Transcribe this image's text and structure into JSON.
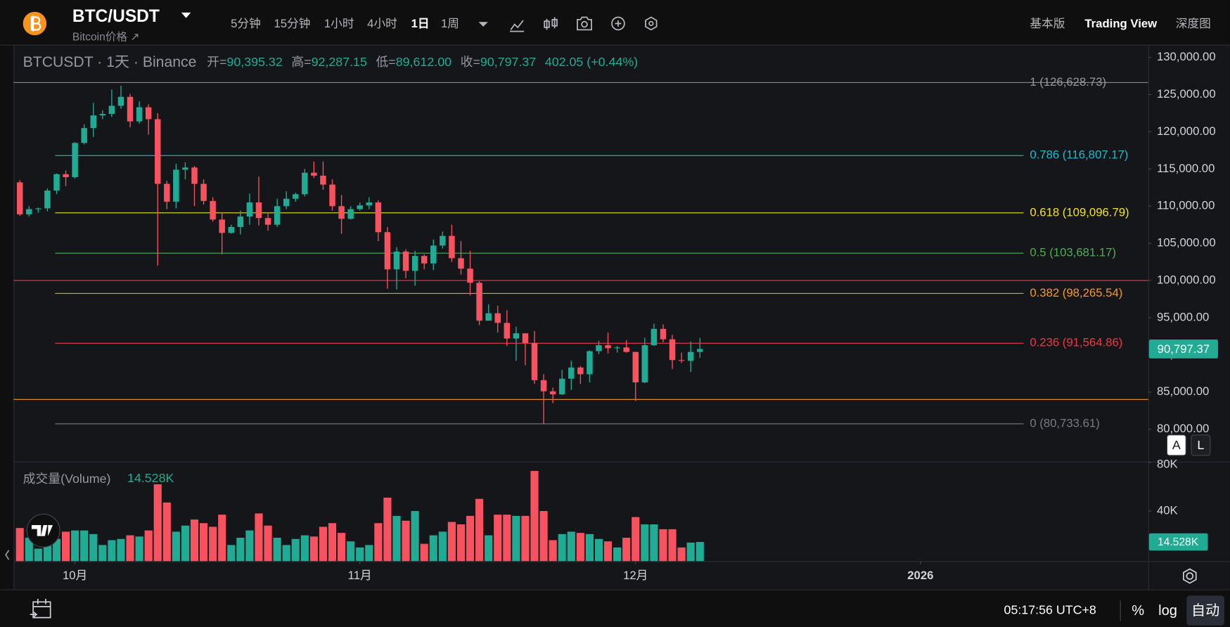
{
  "header": {
    "symbol": "BTC/USDT",
    "subtitle": "Bitcoin价格 ↗",
    "intervals": [
      "5分钟",
      "15分钟",
      "1小时",
      "4小时",
      "1日",
      "1周"
    ],
    "active_interval": 4,
    "views": [
      "基本版",
      "Trading View",
      "深度图"
    ],
    "active_view": 1
  },
  "chart_data": {
    "type": "candlestick",
    "legend": {
      "title": "BTCUSDT · 1天 · Binance",
      "open_label": "开=",
      "open": "90,395.32",
      "high_label": "高=",
      "high": "92,287.15",
      "low_label": "低=",
      "low": "89,612.00",
      "close_label": "收=",
      "close": "90,797.37",
      "change": "402.05 (+0.44%)"
    },
    "up_color": "#22ab94",
    "down_color": "#f7525f",
    "candles": [
      [
        113200,
        113500,
        108700,
        108900
      ],
      [
        108900,
        110000,
        108600,
        109600
      ],
      [
        109600,
        109800,
        109100,
        109700
      ],
      [
        109700,
        112400,
        109300,
        112100
      ],
      [
        112100,
        114400,
        111600,
        114300
      ],
      [
        114300,
        114800,
        112700,
        113900
      ],
      [
        113900,
        118600,
        113700,
        118500
      ],
      [
        118500,
        121000,
        118300,
        120500
      ],
      [
        120500,
        123900,
        119300,
        122200
      ],
      [
        122200,
        122900,
        121700,
        122400
      ],
      [
        122400,
        125700,
        122000,
        123500
      ],
      [
        123500,
        126200,
        123100,
        124700
      ],
      [
        124700,
        125100,
        120600,
        121400
      ],
      [
        121400,
        124100,
        121100,
        123300
      ],
      [
        123300,
        123700,
        119600,
        121700
      ],
      [
        121700,
        122500,
        102000,
        113000
      ],
      [
        113000,
        113400,
        109600,
        110600
      ],
      [
        110600,
        115700,
        109700,
        114900
      ],
      [
        114900,
        115900,
        113600,
        115200
      ],
      [
        115200,
        115400,
        110000,
        113000
      ],
      [
        113000,
        113600,
        110200,
        110700
      ],
      [
        110700,
        111200,
        107900,
        108200
      ],
      [
        108200,
        109200,
        103500,
        106400
      ],
      [
        106400,
        107500,
        106300,
        107200
      ],
      [
        107200,
        109400,
        106200,
        108600
      ],
      [
        108600,
        111700,
        107500,
        110500
      ],
      [
        110500,
        114000,
        107400,
        108400
      ],
      [
        108400,
        109000,
        106700,
        107500
      ],
      [
        107500,
        111000,
        107200,
        110000
      ],
      [
        110000,
        112000,
        109600,
        111000
      ],
      [
        111000,
        111800,
        110600,
        111600
      ],
      [
        111600,
        115000,
        111300,
        114500
      ],
      [
        114500,
        116000,
        113800,
        114100
      ],
      [
        114100,
        116000,
        112200,
        112900
      ],
      [
        112900,
        113600,
        109400,
        110000
      ],
      [
        110000,
        111500,
        106300,
        108300
      ],
      [
        108300,
        110000,
        108200,
        109600
      ],
      [
        109600,
        110500,
        109400,
        110100
      ],
      [
        110100,
        111200,
        109600,
        110500
      ],
      [
        110500,
        110800,
        105300,
        106500
      ],
      [
        106500,
        107200,
        98900,
        101500
      ],
      [
        101500,
        104500,
        98800,
        103900
      ],
      [
        103900,
        104200,
        100300,
        101300
      ],
      [
        101300,
        104000,
        99300,
        103300
      ],
      [
        103300,
        103500,
        101500,
        102300
      ],
      [
        102300,
        105500,
        101400,
        104700
      ],
      [
        104700,
        106600,
        104300,
        106000
      ],
      [
        106000,
        107500,
        102500,
        103000
      ],
      [
        103000,
        105300,
        100800,
        101600
      ],
      [
        101600,
        104000,
        98000,
        99700
      ],
      [
        99700,
        99900,
        94000,
        94600
      ],
      [
        94600,
        96800,
        94600,
        95600
      ],
      [
        95600,
        96600,
        93000,
        94300
      ],
      [
        94300,
        96000,
        91200,
        92200
      ],
      [
        92200,
        93800,
        89200,
        92900
      ],
      [
        92900,
        92900,
        88600,
        91600
      ],
      [
        91600,
        93200,
        86100,
        86600
      ],
      [
        86600,
        87400,
        80700,
        85100
      ],
      [
        85100,
        85600,
        83500,
        84700
      ],
      [
        84700,
        88000,
        84600,
        86800
      ],
      [
        86800,
        89200,
        85300,
        88300
      ],
      [
        88300,
        88500,
        86100,
        87400
      ],
      [
        87400,
        90600,
        86300,
        90500
      ],
      [
        90500,
        91900,
        90100,
        91300
      ],
      [
        91300,
        93000,
        90200,
        90900
      ],
      [
        90900,
        91200,
        90300,
        91000
      ],
      [
        91000,
        92000,
        90300,
        90400
      ],
      [
        90400,
        90400,
        83800,
        86300
      ],
      [
        86300,
        92300,
        86200,
        91300
      ],
      [
        91300,
        94200,
        91200,
        93500
      ],
      [
        93500,
        94100,
        91700,
        92100
      ],
      [
        92100,
        92700,
        88100,
        89300
      ],
      [
        89300,
        90300,
        88900,
        89200
      ],
      [
        89200,
        91800,
        87700,
        90400
      ],
      [
        90395.32,
        92287.15,
        89612,
        90797.37
      ]
    ],
    "volume": [
      26000,
      18000,
      9000,
      12000,
      17000,
      23000,
      24000,
      24000,
      21000,
      12000,
      16000,
      17000,
      20000,
      19000,
      24000,
      62000,
      47000,
      23000,
      28000,
      33000,
      30000,
      27000,
      37000,
      12000,
      18000,
      24000,
      38000,
      28000,
      18000,
      12000,
      17000,
      20000,
      19000,
      27000,
      30000,
      22000,
      15000,
      10000,
      12000,
      30000,
      51000,
      36000,
      32000,
      40000,
      13000,
      20000,
      23000,
      31000,
      29000,
      36000,
      50000,
      20000,
      37000,
      37000,
      36000,
      36000,
      73000,
      40000,
      16000,
      21000,
      23000,
      22000,
      21000,
      17000,
      15000,
      10000,
      18000,
      35000,
      29000,
      29000,
      25000,
      25000,
      10000,
      14000,
      14528
    ],
    "volume_label": "成交量(Volume)",
    "volume_value": "14.528K",
    "ylim": [
      75750,
      131400
    ],
    "yticks": [
      {
        "value": 130000,
        "label": "130,000.00"
      },
      {
        "value": 125000,
        "label": "125,000.00"
      },
      {
        "value": 120000,
        "label": "120,000.00"
      },
      {
        "value": 115000,
        "label": "115,000.00"
      },
      {
        "value": 110000,
        "label": "110,000.00"
      },
      {
        "value": 105000,
        "label": "105,000.00"
      },
      {
        "value": 100000,
        "label": "100,000.00"
      },
      {
        "value": 95000,
        "label": "95,000.00"
      },
      {
        "value": 90000,
        "label": "90,000.00"
      },
      {
        "value": 85000,
        "label": "85,000.00"
      },
      {
        "value": 80000,
        "label": "80,000.00"
      }
    ],
    "vol_ylim": [
      0,
      80000
    ],
    "vol_yticks": [
      {
        "value": 80000,
        "label": "80K"
      },
      {
        "value": 40000,
        "label": "40K"
      }
    ],
    "xticks": [
      {
        "value": 6,
        "label": "10月"
      },
      {
        "value": 37,
        "label": "11月"
      },
      {
        "value": 67,
        "label": "12月"
      },
      {
        "value": 98,
        "label": "2026"
      }
    ],
    "last_price_label": "90,797.37",
    "fib_levels": [
      {
        "value": 126628.73,
        "label": "1 (126,628.73)",
        "color": "#9598a1"
      },
      {
        "value": 116807.17,
        "label": "0.786 (116,807.17)",
        "color": "#22b8cf"
      },
      {
        "value": 109096.79,
        "label": "0.618 (109,096.79)",
        "color": "#f2e12b"
      },
      {
        "value": 103681.17,
        "label": "0.5 (103,681.17)",
        "color": "#4caf50"
      },
      {
        "value": 98265.54,
        "label": "0.382 (98,265.54)",
        "color": "#f59a23"
      },
      {
        "value": 91564.86,
        "label": "0.236 (91,564.86)",
        "color": "#f23645"
      },
      {
        "value": 80733.61,
        "label": "0 (80,733.61)",
        "color": "#787b86"
      }
    ],
    "price_lines": [
      {
        "value": 100000,
        "color": "#f23645"
      },
      {
        "value": 84000,
        "color": "#f59a23"
      }
    ],
    "scale_buttons": [
      "A",
      "L"
    ]
  },
  "footer": {
    "time": "05:17:56 UTC+8",
    "buttons": [
      "%",
      "log",
      "自动"
    ]
  }
}
